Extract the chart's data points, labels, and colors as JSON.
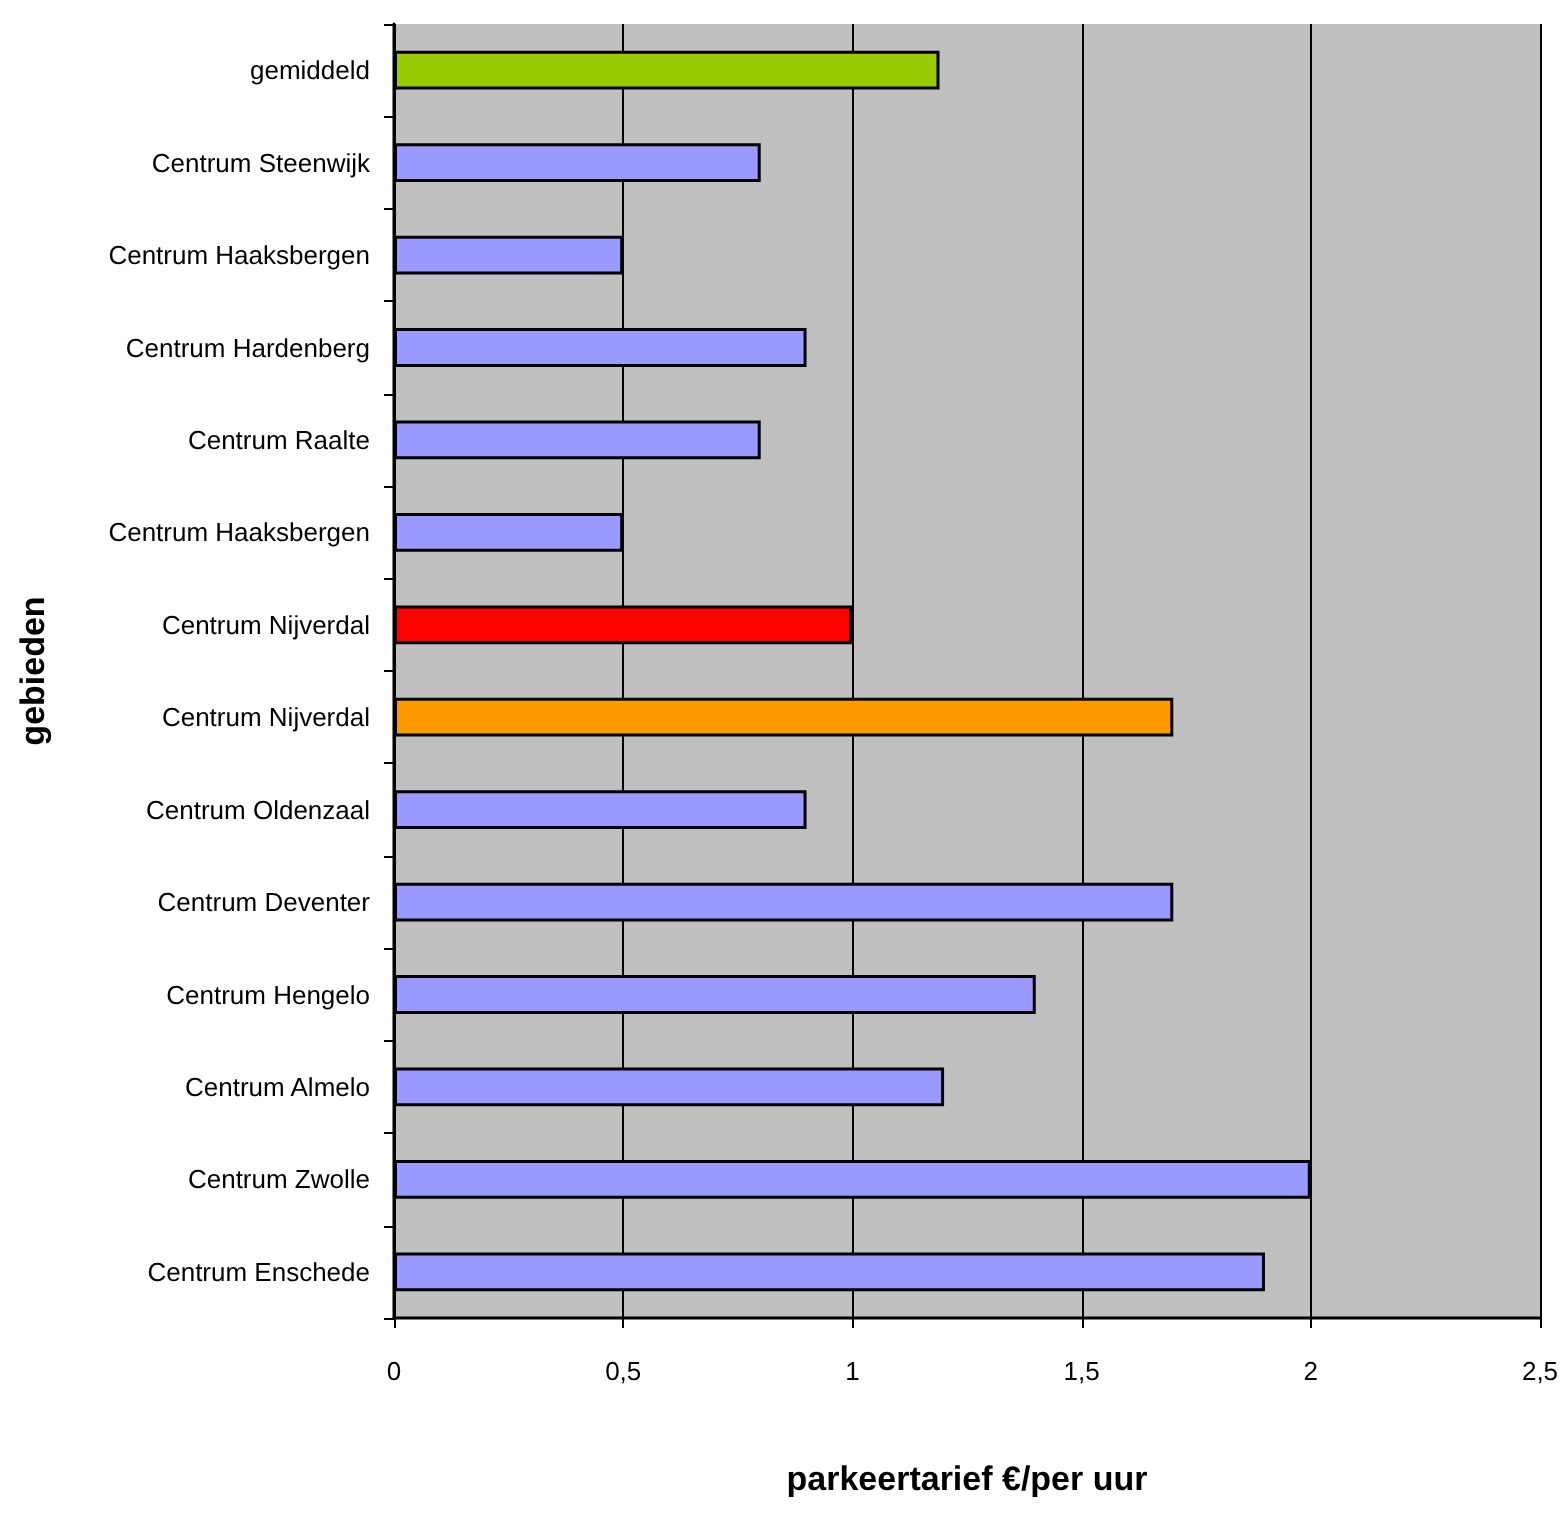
{
  "chart_data": {
    "type": "bar",
    "orientation": "horizontal",
    "xlabel": "parkeertarief €/per uur",
    "ylabel": "gebieden",
    "categories": [
      "gemiddeld",
      "Centrum Steenwijk",
      "Centrum Haaksbergen",
      "Centrum Hardenberg",
      "Centrum Raalte",
      "Centrum Haaksbergen",
      "Centrum Nijverdal",
      "Centrum Nijverdal",
      "Centrum Oldenzaal",
      "Centrum Deventer",
      "Centrum Hengelo",
      "Centrum Almelo",
      "Centrum Zwolle",
      "Centrum Enschede"
    ],
    "values": [
      1.19,
      0.8,
      0.5,
      0.9,
      0.8,
      0.5,
      1.0,
      1.7,
      0.9,
      1.7,
      1.4,
      1.2,
      2.0,
      1.9
    ],
    "colors": [
      "#99cc00",
      "#9999ff",
      "#9999ff",
      "#9999ff",
      "#9999ff",
      "#9999ff",
      "#ff0000",
      "#ff9900",
      "#9999ff",
      "#9999ff",
      "#9999ff",
      "#9999ff",
      "#9999ff",
      "#9999ff"
    ],
    "xlim": [
      0,
      2.5
    ],
    "xticks": [
      0,
      {
        "value": 0.5,
        "label": "0,5"
      },
      1,
      {
        "value": 1.5,
        "label": "1,5"
      },
      2,
      {
        "value": 2.5,
        "label": "2,5"
      }
    ],
    "grid": "x"
  }
}
